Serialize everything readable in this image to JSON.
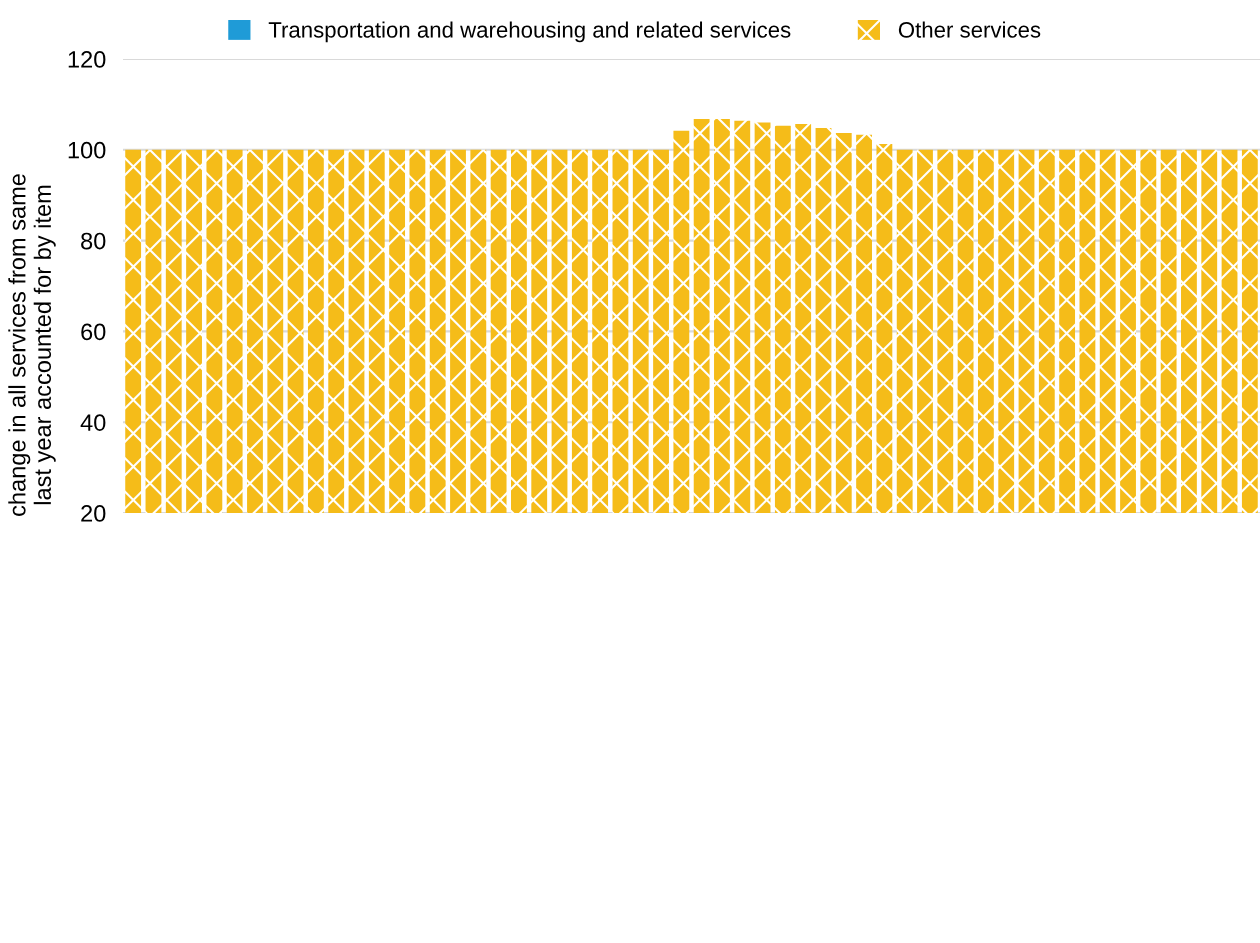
{
  "chart_data": {
    "type": "bar",
    "ylabel": "change in all services from same\nlast year accounted for by item",
    "categories": [
      null,
      null,
      null,
      null,
      null,
      null,
      null,
      null,
      null,
      null,
      null,
      null,
      null,
      null,
      null,
      null,
      null,
      null,
      null,
      null,
      null,
      null,
      null,
      null,
      null,
      null,
      null,
      null,
      null,
      null,
      null,
      null,
      null,
      null,
      null,
      null,
      null,
      null,
      null,
      null,
      null,
      null,
      null,
      null,
      null,
      null,
      null,
      null,
      null,
      null,
      null,
      null,
      null,
      null,
      null,
      null
    ],
    "series": [
      {
        "name": "Transportation and warehousing and related services",
        "color": "#1f9bd7",
        "values": [
          null,
          null,
          null,
          null,
          null,
          null,
          null,
          null,
          null,
          null,
          null,
          null,
          null,
          null,
          null,
          null,
          null,
          null,
          null,
          null,
          null,
          null,
          null,
          null,
          null,
          null,
          null,
          null,
          null,
          null,
          null,
          null,
          null,
          null,
          null,
          null,
          null,
          null,
          null,
          null,
          null,
          null,
          null,
          null,
          null,
          null,
          null,
          null,
          null,
          null,
          null,
          null,
          null,
          null,
          null,
          null
        ]
      },
      {
        "name": "Other services",
        "color": "#f5bc19",
        "values": [
          100,
          100,
          100,
          100,
          100,
          100,
          100,
          100,
          100,
          100,
          100,
          100,
          100,
          100,
          100,
          100,
          100,
          100,
          100,
          100,
          100,
          100,
          100,
          100,
          100,
          100,
          100,
          104.2,
          106.8,
          106.8,
          106.4,
          106,
          105.3,
          105.7,
          104.8,
          103.7,
          103.3,
          101.3,
          100,
          100,
          100,
          100,
          100,
          100,
          100,
          100,
          100,
          100,
          100,
          100,
          100,
          100,
          100,
          100,
          100,
          100
        ]
      }
    ],
    "ylim": [
      20,
      120
    ],
    "yticks": [
      20,
      40,
      60,
      80,
      100,
      120
    ],
    "grid": "y",
    "legend": "top",
    "tick_labels": "y"
  }
}
